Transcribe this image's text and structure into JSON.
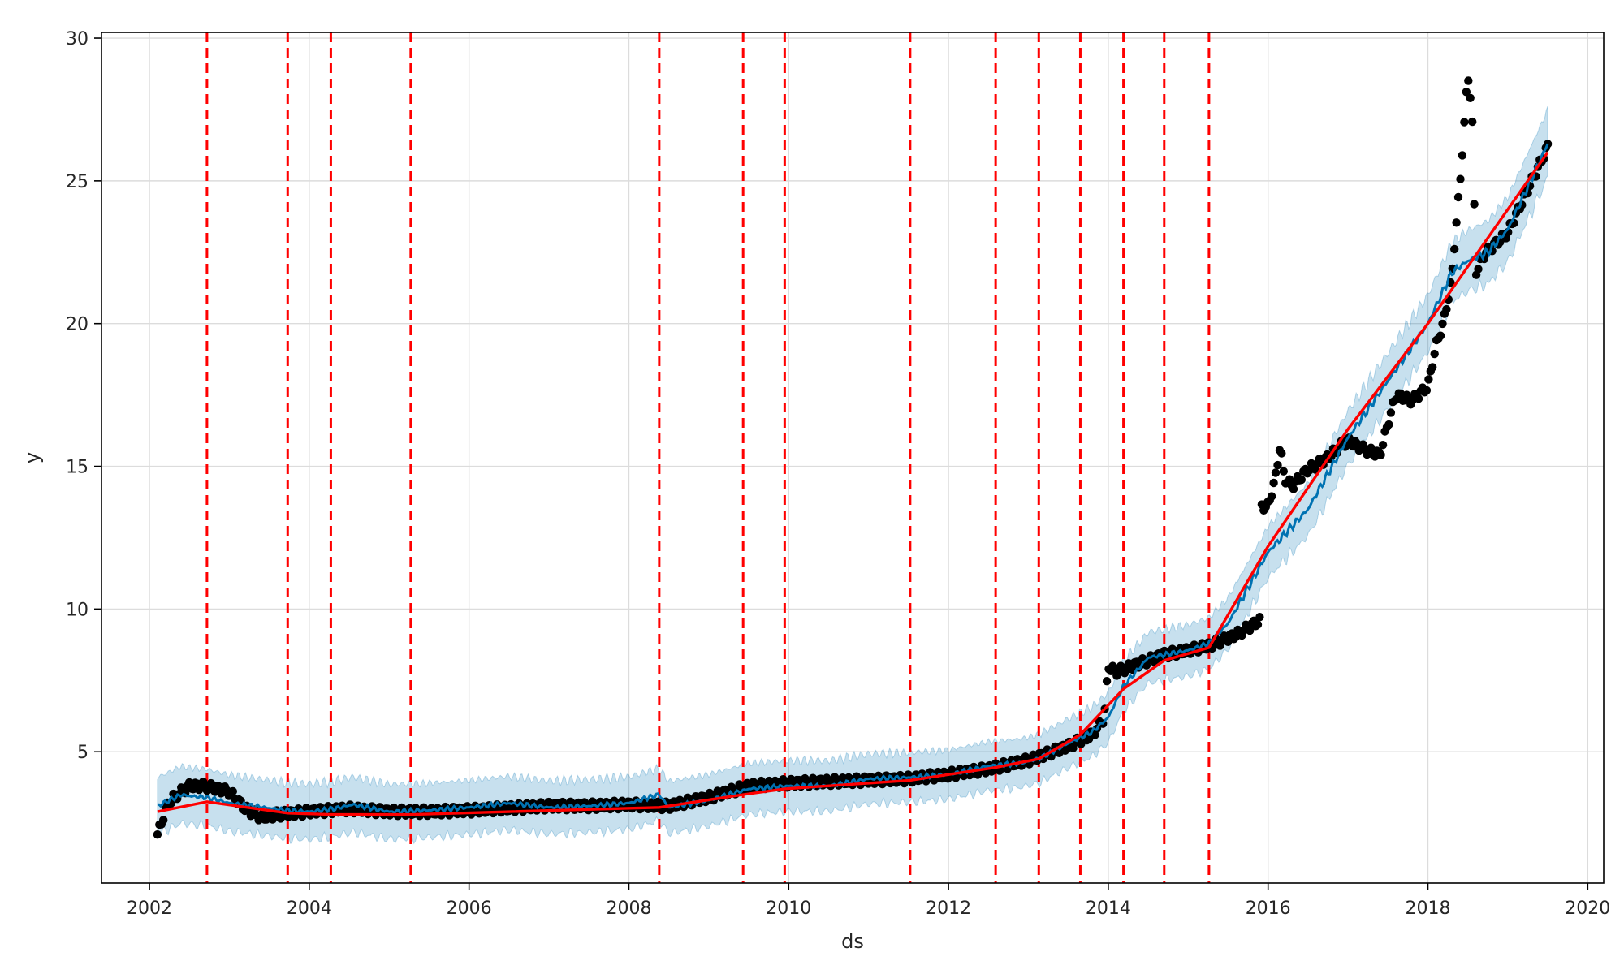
{
  "chart_data": {
    "type": "line",
    "title": "",
    "xlabel": "ds",
    "ylabel": "y",
    "xlim": [
      2001.4,
      2020.2
    ],
    "ylim": [
      0.4,
      30.2
    ],
    "grid": true,
    "x_ticks": [
      {
        "value": 2002,
        "label": "2002"
      },
      {
        "value": 2004,
        "label": "2004"
      },
      {
        "value": 2006,
        "label": "2006"
      },
      {
        "value": 2008,
        "label": "2008"
      },
      {
        "value": 2010,
        "label": "2010"
      },
      {
        "value": 2012,
        "label": "2012"
      },
      {
        "value": 2014,
        "label": "2014"
      },
      {
        "value": 2016,
        "label": "2016"
      },
      {
        "value": 2018,
        "label": "2018"
      },
      {
        "value": 2020,
        "label": "2020"
      }
    ],
    "y_ticks": [
      {
        "value": 5,
        "label": "5"
      },
      {
        "value": 10,
        "label": "10"
      },
      {
        "value": 15,
        "label": "15"
      },
      {
        "value": 20,
        "label": "20"
      },
      {
        "value": 25,
        "label": "25"
      },
      {
        "value": 30,
        "label": "30"
      }
    ],
    "colors": {
      "observed": "#000000",
      "forecast": "#0072B2",
      "uncertainty": "#0072B2",
      "trend": "#ff0000",
      "changepoint": "#ff0000",
      "grid": "#dcdcdc",
      "axis": "#000000"
    },
    "changepoints": [
      2002.72,
      2003.73,
      2004.27,
      2005.27,
      2008.38,
      2009.43,
      2009.95,
      2011.52,
      2012.59,
      2013.13,
      2013.65,
      2014.19,
      2014.7,
      2015.26
    ],
    "trend": {
      "x": [
        2002.1,
        2002.72,
        2003.73,
        2004.27,
        2005.27,
        2008.38,
        2009.43,
        2009.95,
        2011.52,
        2012.59,
        2013.13,
        2013.65,
        2014.19,
        2014.7,
        2015.26,
        2016.0,
        2017.0,
        2018.0,
        2019.5
      ],
      "y": [
        2.9,
        3.25,
        2.85,
        2.8,
        2.8,
        3.05,
        3.5,
        3.7,
        4.0,
        4.45,
        4.75,
        5.6,
        7.2,
        8.2,
        8.65,
        12.2,
        16.3,
        20.0,
        26.0
      ]
    },
    "forecast": {
      "x": [
        2002.1,
        2002.4,
        2002.5,
        2002.72,
        2003.0,
        2003.3,
        2003.7,
        2004.0,
        2004.3,
        2004.55,
        2005.0,
        2005.5,
        2006.0,
        2006.5,
        2007.0,
        2007.5,
        2008.0,
        2008.38,
        2008.5,
        2009.0,
        2009.5,
        2010.0,
        2010.5,
        2011.0,
        2011.5,
        2012.0,
        2012.5,
        2012.9,
        2013.13,
        2013.5,
        2013.8,
        2014.0,
        2014.19,
        2014.5,
        2014.7,
        2015.0,
        2015.26,
        2015.5,
        2016.0,
        2016.5,
        2017.0,
        2017.5,
        2018.0,
        2018.3,
        2018.5,
        2018.75,
        2019.0,
        2019.5
      ],
      "y": [
        3.1,
        3.5,
        3.45,
        3.4,
        3.2,
        3.1,
        2.95,
        2.9,
        3.0,
        3.15,
        2.9,
        2.95,
        3.05,
        3.2,
        3.05,
        3.1,
        3.2,
        3.5,
        3.05,
        3.3,
        3.7,
        3.8,
        3.8,
        4.05,
        4.1,
        4.2,
        4.5,
        4.6,
        4.75,
        5.3,
        5.7,
        6.2,
        7.3,
        8.3,
        8.4,
        8.55,
        8.8,
        9.5,
        12.0,
        13.5,
        16.0,
        18.0,
        20.0,
        21.8,
        22.2,
        22.5,
        23.3,
        26.3
      ]
    },
    "uncertainty_width": {
      "x": [
        2002.1,
        2013.0,
        2015.0,
        2016.0,
        2018.0,
        2019.5
      ],
      "half_width": [
        1.0,
        0.85,
        0.9,
        0.9,
        1.0,
        1.2
      ]
    },
    "observed_series": {
      "x": [
        2002.1,
        2002.15,
        2002.2,
        2002.3,
        2002.5,
        2002.7,
        2003.0,
        2003.2,
        2003.4,
        2003.6,
        2004.0,
        2004.5,
        2005.0,
        2005.5,
        2006.0,
        2007.0,
        2007.5,
        2008.0,
        2008.5,
        2009.0,
        2009.5,
        2010.0,
        2010.5,
        2011.0,
        2011.5,
        2012.0,
        2012.5,
        2013.0,
        2013.5,
        2013.8,
        2013.95,
        2014.0,
        2014.1,
        2014.3,
        2014.7,
        2015.0,
        2015.3,
        2015.6,
        2015.9,
        2015.92,
        2016.0,
        2016.1,
        2016.15,
        2016.2,
        2016.3,
        2016.5,
        2016.7,
        2016.9,
        2017.0,
        2017.2,
        2017.4,
        2017.5,
        2017.6,
        2017.8,
        2018.0,
        2018.1,
        2018.2,
        2018.3,
        2018.35,
        2018.4,
        2018.45,
        2018.5,
        2018.55,
        2018.6,
        2018.7,
        2019.0,
        2019.5
      ],
      "y": [
        2.1,
        2.5,
        3.0,
        3.4,
        3.8,
        3.8,
        3.6,
        3.0,
        2.7,
        2.8,
        2.9,
        3.0,
        2.9,
        2.9,
        2.95,
        3.1,
        3.1,
        3.15,
        3.1,
        3.4,
        3.8,
        3.9,
        3.95,
        4.0,
        4.05,
        4.2,
        4.4,
        4.7,
        5.2,
        5.6,
        6.2,
        8.0,
        7.8,
        8.0,
        8.4,
        8.55,
        8.75,
        9.1,
        9.6,
        13.6,
        13.6,
        14.7,
        15.8,
        14.6,
        14.3,
        14.9,
        15.2,
        15.7,
        15.9,
        15.6,
        15.4,
        16.5,
        17.5,
        17.3,
        17.8,
        19.2,
        20.1,
        21.6,
        23.4,
        24.8,
        26.8,
        28.7,
        27.6,
        21.8,
        22.4,
        23.2,
        26.2
      ]
    }
  }
}
